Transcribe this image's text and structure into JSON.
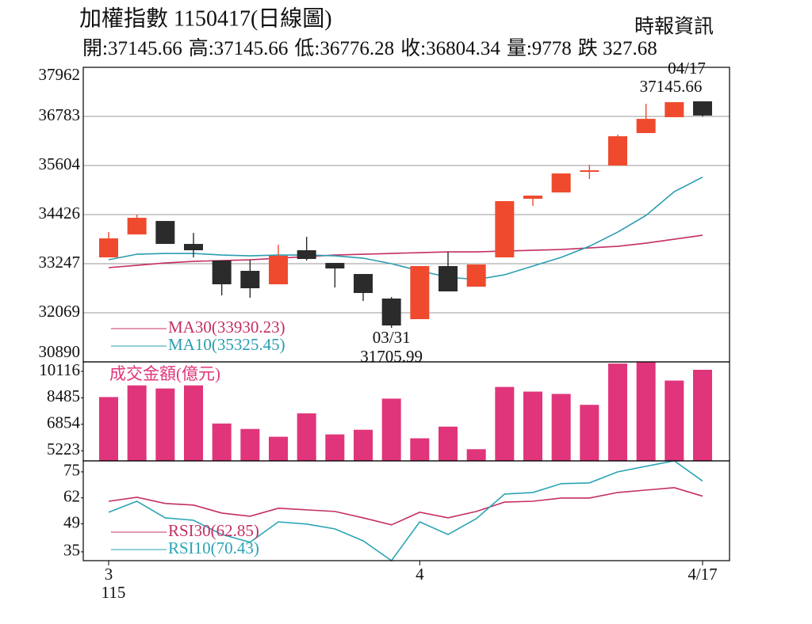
{
  "header": {
    "title": "加權指數 1150417(日線圖)",
    "source": "時報資訊",
    "stats": [
      {
        "label": "開:",
        "value": 37145.66
      },
      {
        "label": "高:",
        "value": 37145.66
      },
      {
        "label": "低:",
        "value": 36776.28
      },
      {
        "label": "收:",
        "value": 36804.34
      },
      {
        "label": "量:",
        "value": 9778
      },
      {
        "label": "跌 ",
        "value": 327.68
      }
    ]
  },
  "chart_data": [
    {
      "type": "candlestick",
      "open": [
        33399,
        33950,
        34273,
        33722,
        33323,
        33076,
        32753,
        33570,
        33266,
        33000,
        32411,
        31916,
        33190,
        32696,
        33399,
        34806,
        34958,
        35452,
        35604,
        36383,
        36764,
        37145.66
      ],
      "high": [
        34007,
        34425,
        34273,
        33988,
        33323,
        33342,
        33703,
        33893,
        33266,
        33000,
        32449,
        33190,
        33532,
        33228,
        34749,
        34882,
        35414,
        35623,
        36345,
        37087,
        37125,
        37145.66
      ],
      "low": [
        33399,
        33950,
        33722,
        33399,
        32487,
        32430,
        32753,
        33323,
        32677,
        32354,
        31705.99,
        31916,
        32582,
        32696,
        33399,
        34635,
        34958,
        35281,
        35604,
        36383,
        36764,
        36776.28
      ],
      "close": [
        33855,
        34349,
        33722,
        33570,
        32753,
        32658,
        33437,
        33361,
        33133,
        32544,
        31764,
        33190,
        32582,
        33228,
        34749,
        34882,
        35414,
        35490,
        36307,
        36725,
        37125,
        36804.34
      ],
      "up_color": "#ef4a2e",
      "down_color": "#2b2b2b",
      "series": [
        {
          "name": "MA30(33930.23)",
          "color": "#c42f63",
          "values": [
            33152,
            33209,
            33266,
            33304,
            33323,
            33342,
            33380,
            33418,
            33456,
            33475,
            33494,
            33513,
            33532,
            33532,
            33551,
            33570,
            33589,
            33627,
            33665,
            33741,
            33836,
            33930.23
          ]
        },
        {
          "name": "MA10(35325.45)",
          "color": "#2a9db0",
          "values": [
            33342,
            33475,
            33494,
            33494,
            33456,
            33437,
            33456,
            33456,
            33437,
            33380,
            33247,
            33076,
            32924,
            32867,
            32981,
            33190,
            33399,
            33665,
            34007,
            34406,
            34977,
            35325.45
          ]
        }
      ],
      "high_note": {
        "date": "04/17",
        "value": 37145.66
      },
      "low_note": {
        "date": "03/31",
        "value": 31705.99
      },
      "ylim": [
        30890,
        37962
      ],
      "yticks": [
        30890,
        32069,
        33247,
        34426,
        35604,
        36783,
        37962
      ],
      "grid": true,
      "legend": "lower left"
    },
    {
      "type": "bar",
      "label": "成交金額(億元)",
      "color": "#e0357a",
      "values": [
        8533,
        9252,
        9060,
        9252,
        6902,
        6566,
        6087,
        7526,
        6231,
        6518,
        8437,
        5991,
        6710,
        5319,
        9156,
        8869,
        8725,
        8053,
        10595,
        10690,
        9550,
        10212
      ],
      "ylim": [
        4600,
        10700
      ],
      "yticks": [
        5223,
        6854,
        8485,
        10116
      ]
    },
    {
      "type": "line",
      "categories": [
        "3",
        null,
        null,
        null,
        null,
        null,
        null,
        null,
        null,
        null,
        null,
        "4",
        null,
        null,
        null,
        null,
        null,
        null,
        null,
        null,
        null,
        "4/17"
      ],
      "x_sublabel": "115",
      "series": [
        {
          "name": "RSI30(62.85)",
          "color": "#c42f63",
          "values": [
            60.3,
            62.3,
            59.2,
            58.4,
            54.4,
            52.8,
            56.8,
            56.0,
            55.2,
            52.0,
            48.5,
            54.8,
            52.0,
            55.2,
            59.9,
            60.3,
            61.9,
            61.9,
            64.7,
            65.9,
            67.1,
            62.85
          ]
        },
        {
          "name": "RSI10(70.43)",
          "color": "#2aa5b5",
          "values": [
            54.8,
            60.3,
            52.0,
            50.8,
            43.7,
            39.8,
            50.0,
            48.9,
            46.5,
            40.5,
            30.6,
            50.0,
            43.7,
            51.6,
            63.9,
            64.7,
            69.1,
            69.5,
            75.0,
            77.8,
            80.5,
            70.43
          ]
        }
      ],
      "ylim": [
        30.6,
        80.5
      ],
      "yticks": [
        35,
        49,
        62,
        75
      ],
      "legend": "lower left"
    }
  ]
}
